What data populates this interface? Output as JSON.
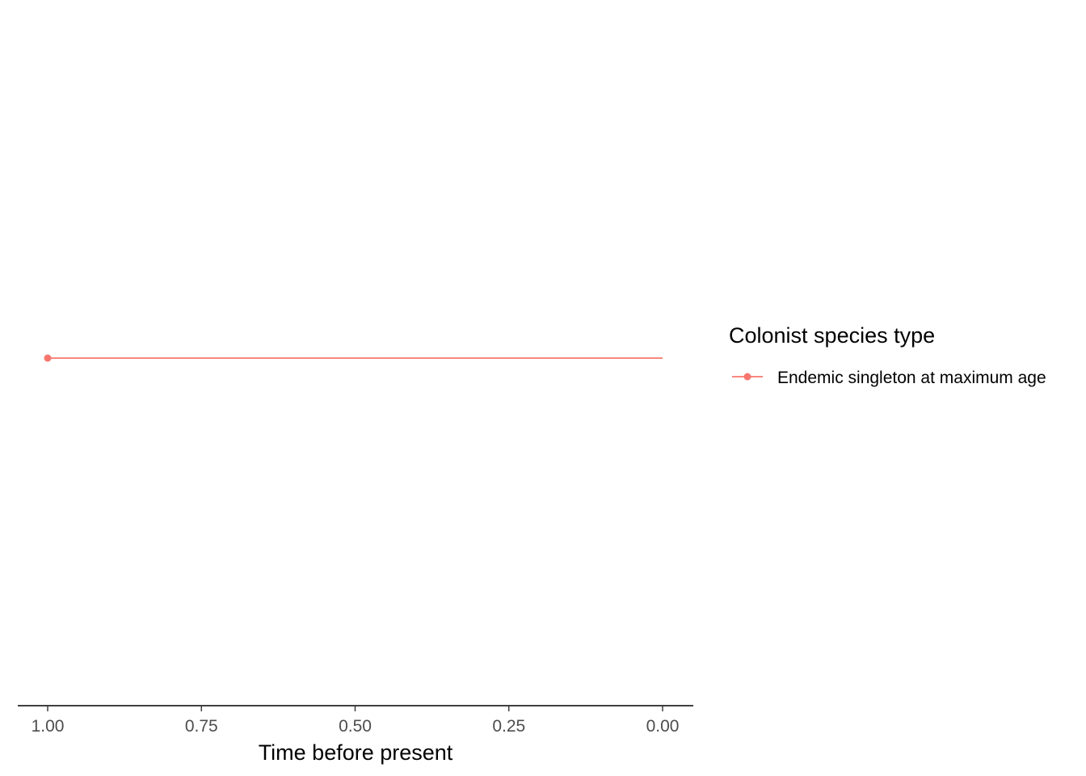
{
  "chart_data": {
    "type": "line",
    "xlabel": "Time before present",
    "ylabel": "",
    "x_reversed": true,
    "xlim": [
      1.0,
      0.0
    ],
    "x_ticks": [
      1.0,
      0.75,
      0.5,
      0.25,
      0.0
    ],
    "x_tick_labels": [
      "1.00",
      "0.75",
      "0.50",
      "0.25",
      "0.00"
    ],
    "grid": false,
    "legend": {
      "title": "Colonist species type",
      "placement": "right"
    },
    "series": [
      {
        "name": "Endemic singleton at maximum age",
        "color": "#F8766D",
        "x": [
          1.0,
          0.0
        ],
        "y": [
          1,
          1
        ],
        "markers_at_x": [
          1.0
        ]
      }
    ]
  }
}
